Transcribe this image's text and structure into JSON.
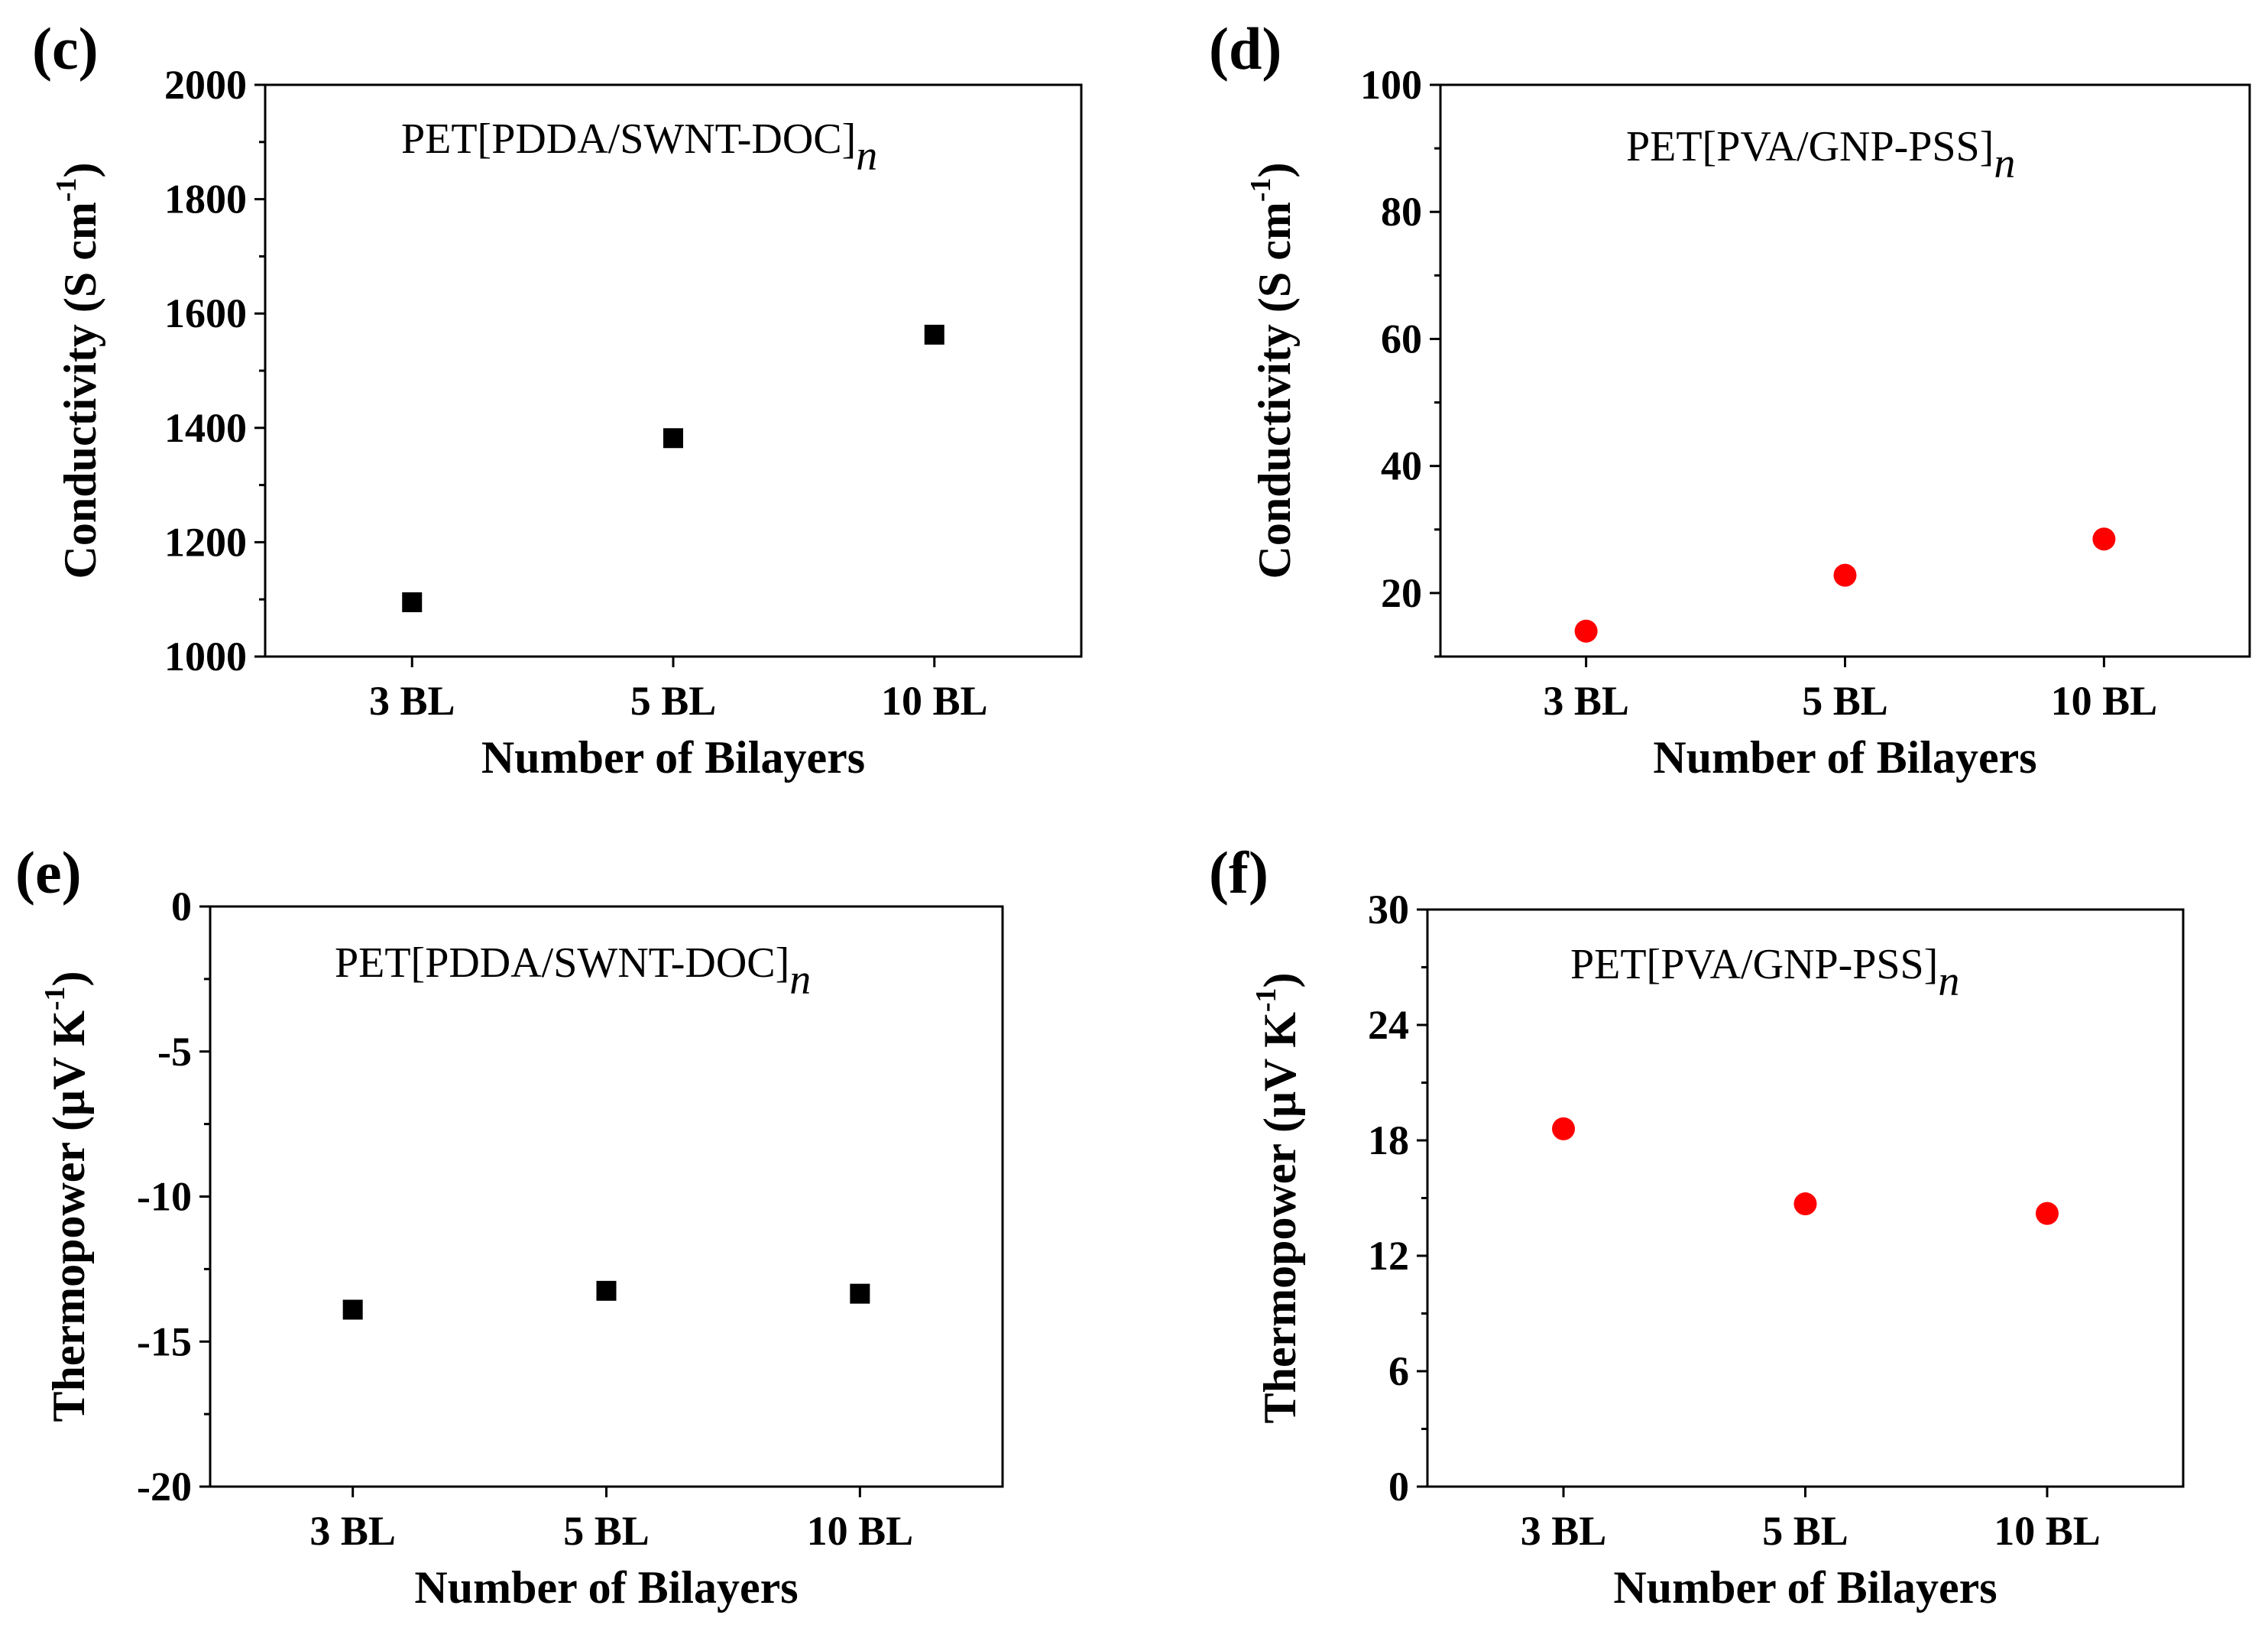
{
  "chart_data": [
    {
      "type": "scatter",
      "panel_label": "(c)",
      "annotation": "PET[PDDA/SWNT-DOC]",
      "annotation_subscript": "n",
      "xlabel": "Number of Bilayers",
      "ylabel_main": "Conductivity (S cm",
      "ylabel_sup": "-1",
      "ylabel_close": ")",
      "categories": [
        "3 BL",
        "5 BL",
        "10 BL"
      ],
      "values": [
        1095,
        1382,
        1563
      ],
      "ylim": [
        1000,
        2000
      ],
      "yticks": [
        1000,
        1200,
        1400,
        1600,
        1800,
        2000
      ],
      "y_ticklabels": [
        "1000",
        "1200",
        "1400",
        "1600",
        "1800",
        "2000"
      ],
      "marker": "square",
      "color": "#000000"
    },
    {
      "type": "scatter",
      "panel_label": "(d)",
      "annotation": "PET[PVA/GNP-PSS]",
      "annotation_subscript": "n",
      "xlabel": "Number of Bilayers",
      "ylabel_main": "Conductivity (S cm",
      "ylabel_sup": "-1",
      "ylabel_close": ")",
      "categories": [
        "3 BL",
        "5 BL",
        "10 BL"
      ],
      "values": [
        14,
        22.8,
        28.5
      ],
      "ylim": [
        10,
        100
      ],
      "yticks": [
        20,
        40,
        60,
        80,
        100
      ],
      "y_ticklabels": [
        "20",
        "40",
        "60",
        "80",
        "100"
      ],
      "marker": "circle",
      "color": "#ff0000"
    },
    {
      "type": "scatter",
      "panel_label": "(e)",
      "annotation": "PET[PDDA/SWNT-DOC]",
      "annotation_subscript": "n",
      "xlabel": "Number of Bilayers",
      "ylabel_main": "Thermopower (μV K",
      "ylabel_sup": "-1",
      "ylabel_close": ")",
      "categories": [
        "3 BL",
        "5 BL",
        "10 BL"
      ],
      "values": [
        -13.9,
        -13.25,
        -13.35
      ],
      "ylim": [
        -20,
        0
      ],
      "yticks": [
        -20,
        -15,
        -10,
        -5,
        0
      ],
      "y_ticklabels": [
        "-20",
        "-15",
        "-10",
        "-5",
        "0"
      ],
      "marker": "square",
      "color": "#000000"
    },
    {
      "type": "scatter",
      "panel_label": "(f)",
      "annotation": "PET[PVA/GNP-PSS]",
      "annotation_subscript": "n",
      "xlabel": "Number of Bilayers",
      "ylabel_main": "Thermopower (μV K",
      "ylabel_sup": "-1",
      "ylabel_close": ")",
      "categories": [
        "3 BL",
        "5 BL",
        "10 BL"
      ],
      "values": [
        18.6,
        14.7,
        14.2
      ],
      "ylim": [
        0,
        30
      ],
      "yticks": [
        0,
        6,
        12,
        18,
        24,
        30
      ],
      "y_ticklabels": [
        "0",
        "6",
        "12",
        "18",
        "24",
        "30"
      ],
      "marker": "circle",
      "color": "#ff0000"
    }
  ]
}
